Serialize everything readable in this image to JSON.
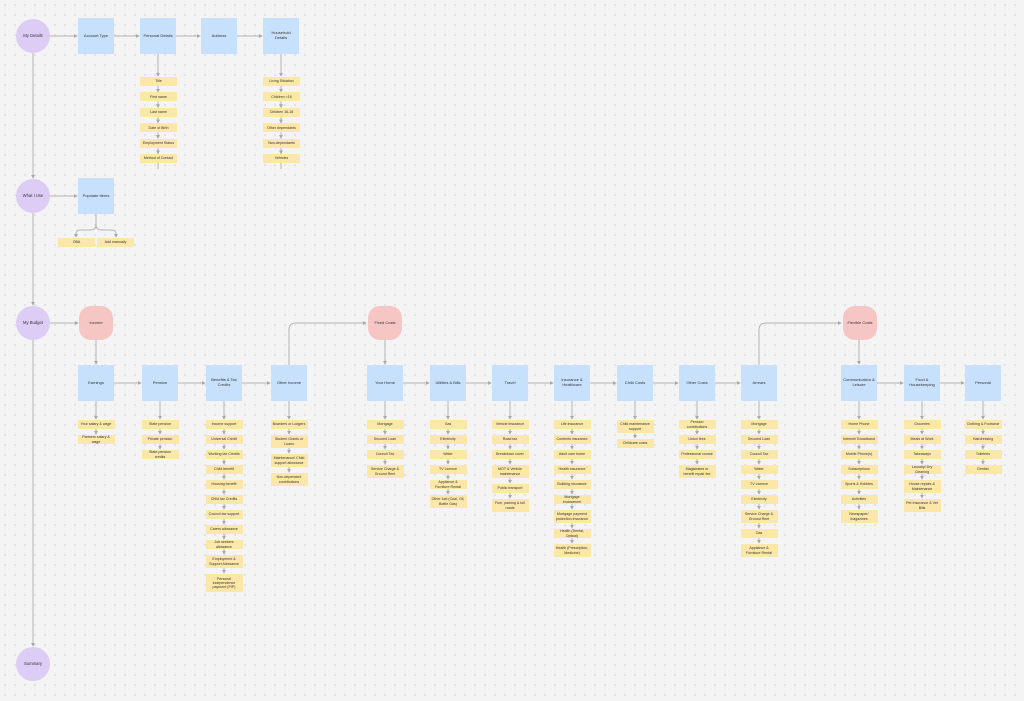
{
  "sections": {
    "my_details": "My Details",
    "what_i_use": "What I Use",
    "my_budget": "My Budget",
    "summary": "Summary"
  },
  "details": {
    "account_type": "Account Type",
    "personal_details": "Personal Details",
    "address": "Address",
    "household_details": "Household Details",
    "personal_items": [
      "Title",
      "First name",
      "Last name",
      "Date of Birth",
      "Employment Status",
      "Method of Contact"
    ],
    "household_items": [
      "Living Situation",
      "Children <16",
      "Children 16-18",
      "Other dependants",
      "Non-dependants",
      "Vehicles"
    ]
  },
  "what_i_use": {
    "populate_items": "Populate Items",
    "options": [
      "OBA",
      "Add manually"
    ]
  },
  "budget": {
    "groups": {
      "income": "Income",
      "fixed_costs": "Fixed Costs",
      "flexible_costs": "Flexible Costs"
    },
    "categories": [
      {
        "label": "Earnings",
        "items": [
          "Your salary & wage",
          "Partners salary & wage"
        ]
      },
      {
        "label": "Pension",
        "items": [
          "State pension",
          "Private pension",
          "State pension credits"
        ]
      },
      {
        "label": "Benefits & Tax Credits",
        "items": [
          "Income support",
          "Universal Credit",
          "Working tax Credits",
          "Child benefit",
          "Housing benefit",
          "Child tax Credits",
          "Council tax support",
          "Carers allowance",
          "Job seekers allowance",
          "Employment & Support Allowance",
          "Personal independence payment (PIP)"
        ]
      },
      {
        "label": "Other Income",
        "items": [
          "Boarders or Lodgers",
          "Student Grants or Loans",
          "Maintenance/ Child support allowance",
          "Non-dependent contributions"
        ]
      },
      {
        "label": "Your Home",
        "items": [
          "Mortgage",
          "Secured Loan",
          "Council Tax",
          "Service Charge & Ground Rent"
        ]
      },
      {
        "label": "Utilities & Bills",
        "items": [
          "Gas",
          "Electricity",
          "Water",
          "TV Licence",
          "Appliance & Furniture Rental",
          "Other fuel (Coal, Oil, Bottle Gas)"
        ]
      },
      {
        "label": "Travel",
        "items": [
          "Vehicle insurance",
          "Road tax",
          "Breakdown cover",
          "MOT & Vehicle maintenance",
          "Public transport",
          "Fuel, parking & toll roads"
        ]
      },
      {
        "label": "Insurance & Healthcare",
        "items": [
          "Life insurance",
          "Contents insurance",
          "Adult care home",
          "Health insurance",
          "Building insurance",
          "Mortgage endowment",
          "Mortgage payment protection insurance",
          "Health (Dental, Optical)",
          "Health (Prescription, Medicine)"
        ]
      },
      {
        "label": "Child Costs",
        "items": [
          "Child maintenance support",
          "Childcare costs"
        ]
      },
      {
        "label": "Other Costs",
        "items": [
          "Pension contributions",
          "Union fees",
          "Professional course",
          "Magistrates or benefit repair fee"
        ]
      },
      {
        "label": "Arrears",
        "items": [
          "Mortgage",
          "Secured Loan",
          "Council Tax",
          "Water",
          "TV Licence",
          "Electricity",
          "Service Charge & Ground Rent",
          "Gas",
          "Appliance & Furniture Rental"
        ]
      },
      {
        "label": "Communication & Leisure",
        "items": [
          "Home Phone",
          "Internet/ Broadband",
          "Mobile Phone(s)",
          "Subscriptions",
          "Sports & Hobbies",
          "Activities",
          "Newspaper/ magazines"
        ]
      },
      {
        "label": "Food & Housekeeping",
        "items": [
          "Groceries",
          "Meals at Work",
          "Takeaways",
          "Laundry/ Dry Cleaning",
          "House repairs & Maintenance",
          "Pet Insurance & Vet Bills"
        ]
      },
      {
        "label": "Personal",
        "items": [
          "Clothing & Footwear",
          "Hairdressing",
          "Toiletries",
          "Dentist"
        ]
      }
    ]
  }
}
